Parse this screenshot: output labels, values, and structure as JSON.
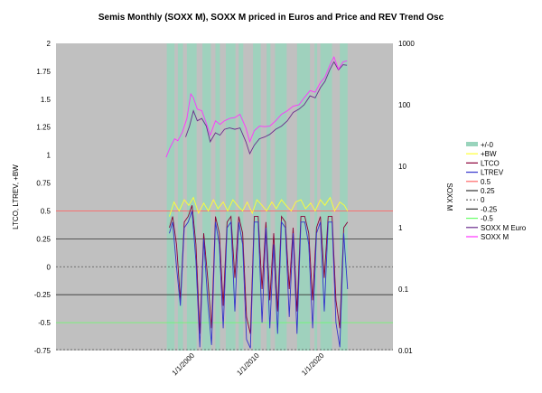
{
  "chart_data": {
    "type": "line",
    "title": "Semis Monthly (SOXX M), SOXX M priced in Euros and Price and REV Trend Osc",
    "y_left": {
      "label": "LTCO, LTREV, +BW",
      "range": [
        -0.75,
        2
      ],
      "ticks": [
        "2",
        "1.75",
        "1.5",
        "1.25",
        "1",
        "0.75",
        "0.5",
        "0.25",
        "0",
        "-0.25",
        "-0.5",
        "-0.75"
      ]
    },
    "y_right": {
      "label": "SOXX M",
      "scale": "log",
      "range": [
        0.01,
        1000
      ],
      "ticks": [
        "1000",
        "100",
        "10",
        "1",
        "0.1",
        "0.01"
      ]
    },
    "x_axis": {
      "range": [
        "1979-01",
        "2030-12"
      ],
      "tick_labels": [
        "1/1/2000",
        "1/1/2010",
        "1/1/2020"
      ]
    },
    "grid": "horizontal lines at 0.25, -0.25 and -0.5 on left axis",
    "legend_position": "right",
    "legend": [
      {
        "name": "+/-0",
        "color": "#99d4bc"
      },
      {
        "name": "+BW",
        "color": "#ffff33"
      },
      {
        "name": "LTCO",
        "color": "#8b0038"
      },
      {
        "name": "LTREV",
        "color": "#3333cc"
      },
      {
        "name": "0.5",
        "color": "#ff6666"
      },
      {
        "name": "0.25",
        "color": "#333333"
      },
      {
        "name": "0",
        "color": "#555555"
      },
      {
        "name": "-0.25",
        "color": "#333333"
      },
      {
        "name": "-0.5",
        "color": "#66ff66"
      },
      {
        "name": "SOXX M Euro",
        "color": "#6a2c8c"
      },
      {
        "name": "SOXX M",
        "color": "#ff33ff"
      }
    ],
    "series": [
      {
        "name": "SOXX M",
        "axis": "right",
        "color": "#ff33ff",
        "x": [
          1996.0,
          1996.6,
          1997.3,
          1997.8,
          1998.5,
          1999.2,
          1999.8,
          2000.2,
          2000.8,
          2001.5,
          2002.2,
          2002.8,
          2003.6,
          2004.3,
          2005.0,
          2005.8,
          2006.6,
          2007.4,
          2008.3,
          2008.9,
          2009.6,
          2010.4,
          2011.2,
          2012.0,
          2012.9,
          2013.8,
          2014.7,
          2015.6,
          2016.5,
          2017.3,
          2018.2,
          2019.0,
          2019.8,
          2020.5,
          2021.3,
          2021.9,
          2022.6,
          2023.3,
          2023.9
        ],
        "y": [
          14,
          20,
          28,
          26,
          36,
          60,
          150,
          130,
          85,
          80,
          50,
          32,
          55,
          48,
          55,
          60,
          62,
          70,
          42,
          25,
          38,
          45,
          44,
          45,
          55,
          70,
          80,
          95,
          100,
          130,
          170,
          160,
          230,
          280,
          450,
          600,
          380,
          500,
          520
        ]
      },
      {
        "name": "SOXX M Euro",
        "axis": "right",
        "color": "#6a2c8c",
        "x": [
          1999.0,
          1999.6,
          2000.2,
          2000.8,
          2001.5,
          2002.2,
          2002.8,
          2003.6,
          2004.3,
          2005.0,
          2005.8,
          2006.6,
          2007.4,
          2008.3,
          2008.9,
          2009.6,
          2010.4,
          2011.2,
          2012.0,
          2012.9,
          2013.8,
          2014.7,
          2015.6,
          2016.5,
          2017.3,
          2018.2,
          2019.0,
          2019.8,
          2020.5,
          2021.3,
          2021.9,
          2022.6,
          2023.3,
          2023.9
        ],
        "y": [
          30,
          45,
          80,
          55,
          60,
          45,
          25,
          35,
          32,
          40,
          42,
          40,
          42,
          25,
          16,
          22,
          28,
          30,
          33,
          40,
          45,
          55,
          75,
          85,
          100,
          140,
          130,
          190,
          240,
          380,
          500,
          370,
          450,
          440
        ]
      },
      {
        "name": "LTCO",
        "axis": "left",
        "color": "#8b0038",
        "x": [
          1996.5,
          1997.0,
          1997.6,
          1998.2,
          1998.8,
          1999.4,
          2000.0,
          2000.6,
          2001.2,
          2001.8,
          2002.4,
          2003.0,
          2003.6,
          2004.2,
          2004.8,
          2005.4,
          2006.0,
          2006.6,
          2007.2,
          2007.8,
          2008.4,
          2009.0,
          2009.6,
          2010.2,
          2010.8,
          2011.4,
          2012.0,
          2012.6,
          2013.2,
          2013.8,
          2014.4,
          2015.0,
          2015.6,
          2016.2,
          2016.8,
          2017.4,
          2018.0,
          2018.6,
          2019.2,
          2019.8,
          2020.4,
          2021.0,
          2021.6,
          2022.2,
          2022.8,
          2023.4,
          2024.0
        ],
        "y": [
          0.35,
          0.45,
          0.2,
          -0.3,
          0.4,
          0.45,
          0.55,
          0.2,
          -0.6,
          0.3,
          -0.1,
          -0.55,
          0.45,
          0.3,
          -0.35,
          0.4,
          0.45,
          -0.1,
          0.45,
          0.3,
          -0.45,
          -0.6,
          0.45,
          0.45,
          -0.2,
          0.4,
          -0.3,
          0.3,
          -0.4,
          0.45,
          0.4,
          -0.2,
          0.35,
          -0.4,
          0.45,
          0.45,
          0.3,
          -0.3,
          0.35,
          0.45,
          -0.1,
          0.45,
          0.45,
          -0.3,
          -0.55,
          0.35,
          0.4
        ]
      },
      {
        "name": "LTREV",
        "axis": "left",
        "color": "#3333cc",
        "x": [
          1996.5,
          1997.0,
          1997.6,
          1998.2,
          1998.8,
          1999.4,
          2000.0,
          2000.6,
          2001.2,
          2001.8,
          2002.4,
          2003.0,
          2003.6,
          2004.2,
          2004.8,
          2005.4,
          2006.0,
          2006.6,
          2007.2,
          2007.8,
          2008.4,
          2009.0,
          2009.6,
          2010.2,
          2010.8,
          2011.4,
          2012.0,
          2012.6,
          2013.2,
          2013.8,
          2014.4,
          2015.0,
          2015.6,
          2016.2,
          2016.8,
          2017.4,
          2018.0,
          2018.6,
          2019.2,
          2019.8,
          2020.4,
          2021.0,
          2021.6,
          2022.2,
          2022.8,
          2023.4,
          2024.0
        ],
        "y": [
          0.3,
          0.4,
          0.0,
          -0.35,
          0.35,
          0.4,
          0.5,
          0.05,
          -0.72,
          0.25,
          -0.3,
          -0.7,
          0.4,
          0.2,
          -0.55,
          0.35,
          0.4,
          -0.4,
          0.4,
          0.2,
          -0.65,
          -0.73,
          0.4,
          0.4,
          -0.5,
          0.35,
          -0.55,
          0.2,
          -0.6,
          0.4,
          0.35,
          -0.45,
          0.3,
          -0.6,
          0.4,
          0.4,
          0.2,
          -0.55,
          0.3,
          0.4,
          -0.4,
          0.4,
          0.4,
          -0.5,
          -0.72,
          0.3,
          -0.2
        ]
      },
      {
        "name": "+BW",
        "axis": "left",
        "color": "#ffff33",
        "x": [
          1996.5,
          1997.2,
          1998.0,
          1998.8,
          1999.5,
          2000.2,
          2001.0,
          2001.8,
          2002.5,
          2003.3,
          2004.0,
          2004.8,
          2005.5,
          2006.3,
          2007.0,
          2007.8,
          2008.5,
          2009.3,
          2010.0,
          2010.8,
          2011.5,
          2012.3,
          2013.0,
          2013.8,
          2014.5,
          2015.3,
          2016.0,
          2016.8,
          2017.5,
          2018.3,
          2019.0,
          2019.8,
          2020.5,
          2021.3,
          2022.0,
          2022.8,
          2023.5,
          2024.0
        ],
        "y": [
          0.45,
          0.58,
          0.5,
          0.6,
          0.55,
          0.62,
          0.48,
          0.57,
          0.5,
          0.6,
          0.52,
          0.58,
          0.5,
          0.6,
          0.55,
          0.5,
          0.58,
          0.48,
          0.6,
          0.55,
          0.5,
          0.58,
          0.52,
          0.6,
          0.55,
          0.5,
          0.58,
          0.6,
          0.52,
          0.57,
          0.5,
          0.6,
          0.55,
          0.62,
          0.5,
          0.58,
          0.55,
          0.5
        ]
      }
    ],
    "bands_plus_minus_0": [
      [
        1996.1,
        1997.3
      ],
      [
        1997.8,
        1998.6
      ],
      [
        1999.2,
        2000.7
      ],
      [
        2001.6,
        2002.9
      ],
      [
        2003.6,
        2004.3
      ],
      [
        2005.2,
        2006.7
      ],
      [
        2007.2,
        2007.9
      ],
      [
        2009.4,
        2010.6
      ],
      [
        2011.5,
        2012.1
      ],
      [
        2012.8,
        2014.6
      ],
      [
        2016.2,
        2018.2
      ],
      [
        2018.9,
        2019.3
      ],
      [
        2019.8,
        2021.6
      ],
      [
        2022.8,
        2024.0
      ]
    ],
    "reference_lines": {
      "0.5": 0.5,
      "0.25": 0.25,
      "0": 0,
      "-0.25": -0.25,
      "-0.5": -0.5
    }
  }
}
